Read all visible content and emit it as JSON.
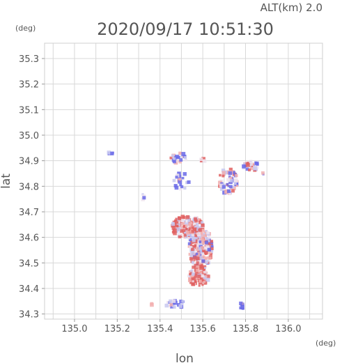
{
  "alt_label": "ALT(km) 2.0",
  "timestamp": "2020/09/17 10:51:30",
  "unit_y": "(deg)",
  "unit_x": "(deg)",
  "chart_data": {
    "type": "scatter",
    "xlabel": "lon",
    "ylabel": "lat",
    "xlim": [
      134.86,
      136.16
    ],
    "ylim": [
      34.28,
      35.36
    ],
    "xticks": [
      "135.0",
      "135.2",
      "135.4",
      "135.6",
      "135.8",
      "136.0"
    ],
    "yticks": [
      "34.3",
      "34.4",
      "34.5",
      "34.6",
      "34.7",
      "34.8",
      "34.9",
      "35.0",
      "35.1",
      "35.2",
      "35.3"
    ],
    "grid": true,
    "colors": {
      "positive": "#e06060",
      "negative": "#6a6ae8",
      "neutral": "#c8c8f0"
    },
    "clusters": [
      {
        "lon": 135.59,
        "lat": 34.56,
        "rx": 0.055,
        "ry": 0.08,
        "count": 260,
        "bias": 0.1
      },
      {
        "lon": 135.58,
        "lat": 34.45,
        "rx": 0.05,
        "ry": 0.04,
        "count": 110,
        "bias": 0.55
      },
      {
        "lon": 135.53,
        "lat": 34.64,
        "rx": 0.075,
        "ry": 0.045,
        "count": 170,
        "bias": 0.4
      },
      {
        "lon": 135.72,
        "lat": 34.82,
        "rx": 0.045,
        "ry": 0.05,
        "count": 70,
        "bias": -0.3
      },
      {
        "lon": 135.83,
        "lat": 34.88,
        "rx": 0.04,
        "ry": 0.02,
        "count": 40,
        "bias": -0.1
      },
      {
        "lon": 135.49,
        "lat": 34.91,
        "rx": 0.04,
        "ry": 0.02,
        "count": 25,
        "bias": 0.0
      },
      {
        "lon": 135.5,
        "lat": 34.82,
        "rx": 0.035,
        "ry": 0.035,
        "count": 25,
        "bias": -0.6
      },
      {
        "lon": 135.47,
        "lat": 34.34,
        "rx": 0.05,
        "ry": 0.015,
        "count": 25,
        "bias": -0.5
      },
      {
        "lon": 135.6,
        "lat": 34.9,
        "rx": 0.01,
        "ry": 0.01,
        "count": 6,
        "bias": 0.8
      },
      {
        "lon": 135.17,
        "lat": 34.93,
        "rx": 0.01,
        "ry": 0.01,
        "count": 5,
        "bias": -0.9
      },
      {
        "lon": 135.78,
        "lat": 34.33,
        "rx": 0.012,
        "ry": 0.012,
        "count": 8,
        "bias": -0.4
      },
      {
        "lon": 135.32,
        "lat": 34.76,
        "rx": 0.008,
        "ry": 0.012,
        "count": 4,
        "bias": -0.6
      },
      {
        "lon": 135.88,
        "lat": 34.85,
        "rx": 0.005,
        "ry": 0.005,
        "count": 2,
        "bias": -0.7
      },
      {
        "lon": 135.36,
        "lat": 34.34,
        "rx": 0.005,
        "ry": 0.005,
        "count": 2,
        "bias": 0.7
      }
    ]
  }
}
